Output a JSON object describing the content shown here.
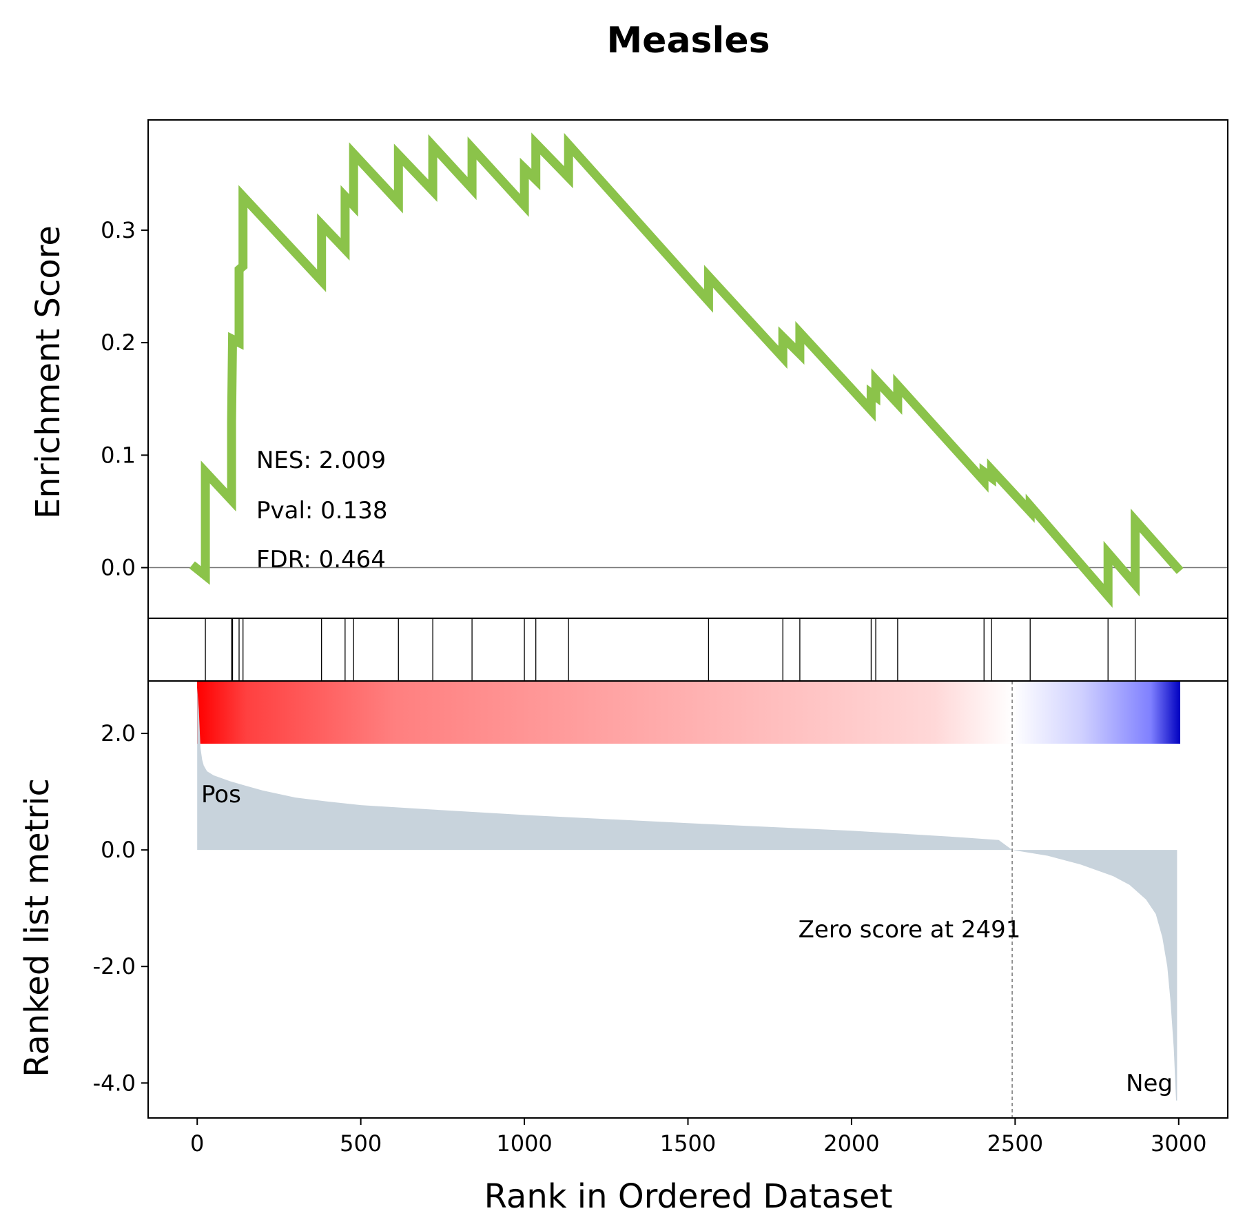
{
  "chart_data": {
    "type": "line",
    "title": "Measles",
    "xlabel": "Rank in Ordered Dataset",
    "xlim": [
      -150,
      3150
    ],
    "xticks": [
      0,
      500,
      1000,
      1500,
      2000,
      2500,
      3000
    ],
    "xtick_labels": [
      "0",
      "500",
      "1000",
      "1500",
      "2000",
      "2500",
      "3000"
    ],
    "n_genes": 3000,
    "enrichment": {
      "ylabel": "Enrichment Score",
      "ylim": [
        -0.045,
        0.398
      ],
      "yticks": [
        0.0,
        0.1,
        0.2,
        0.3
      ],
      "ytick_labels": [
        "0.0",
        "0.1",
        "0.2",
        "0.3"
      ],
      "color": "#8bc34a",
      "points": [
        [
          -5,
          0.0
        ],
        [
          25,
          -0.007
        ],
        [
          25,
          0.085
        ],
        [
          105,
          0.06
        ],
        [
          105,
          0.13
        ],
        [
          108,
          0.203
        ],
        [
          128,
          0.2
        ],
        [
          128,
          0.265
        ],
        [
          140,
          0.268
        ],
        [
          140,
          0.33
        ],
        [
          380,
          0.255
        ],
        [
          380,
          0.305
        ],
        [
          452,
          0.283
        ],
        [
          452,
          0.33
        ],
        [
          478,
          0.322
        ],
        [
          478,
          0.368
        ],
        [
          615,
          0.325
        ],
        [
          615,
          0.367
        ],
        [
          720,
          0.335
        ],
        [
          720,
          0.375
        ],
        [
          840,
          0.337
        ],
        [
          840,
          0.373
        ],
        [
          1000,
          0.322
        ],
        [
          1000,
          0.355
        ],
        [
          1035,
          0.345
        ],
        [
          1035,
          0.377
        ],
        [
          1135,
          0.347
        ],
        [
          1135,
          0.376
        ],
        [
          1563,
          0.237
        ],
        [
          1563,
          0.259
        ],
        [
          1790,
          0.187
        ],
        [
          1790,
          0.205
        ],
        [
          1842,
          0.19
        ],
        [
          1842,
          0.209
        ],
        [
          2060,
          0.14
        ],
        [
          2060,
          0.155
        ],
        [
          2074,
          0.152
        ],
        [
          2074,
          0.167
        ],
        [
          2141,
          0.146
        ],
        [
          2141,
          0.162
        ],
        [
          2405,
          0.077
        ],
        [
          2405,
          0.085
        ],
        [
          2428,
          0.08
        ],
        [
          2428,
          0.087
        ],
        [
          2546,
          0.05
        ],
        [
          2546,
          0.055
        ],
        [
          2784,
          -0.025
        ],
        [
          2784,
          0.013
        ],
        [
          2867,
          -0.015
        ],
        [
          2867,
          0.042
        ],
        [
          2995,
          0.0
        ]
      ],
      "hit_ranks": [
        25,
        105,
        108,
        128,
        140,
        380,
        452,
        478,
        615,
        720,
        840,
        1000,
        1035,
        1135,
        1563,
        1790,
        1842,
        2060,
        2074,
        2141,
        2405,
        2428,
        2546,
        2784,
        2867
      ],
      "stats": {
        "nes": "NES: 2.009",
        "pval": "Pval: 0.138",
        "fdr": "FDR: 0.464"
      }
    },
    "ranked_metric": {
      "ylabel": "Ranked list metric",
      "ylim": [
        -4.6,
        2.9
      ],
      "yticks": [
        2.0,
        0.0,
        -2.0,
        -4.0
      ],
      "ytick_labels": [
        "2.0",
        "0.0",
        "-2.0",
        "-4.0"
      ],
      "fill_color": "#c8d3dc",
      "zero_cross_rank": 2491,
      "profile": [
        [
          0,
          2.8
        ],
        [
          5,
          2.4
        ],
        [
          10,
          1.75
        ],
        [
          15,
          1.55
        ],
        [
          20,
          1.45
        ],
        [
          30,
          1.35
        ],
        [
          50,
          1.28
        ],
        [
          100,
          1.18
        ],
        [
          150,
          1.1
        ],
        [
          200,
          1.02
        ],
        [
          300,
          0.9
        ],
        [
          400,
          0.83
        ],
        [
          500,
          0.77
        ],
        [
          700,
          0.7
        ],
        [
          1000,
          0.6
        ],
        [
          1500,
          0.46
        ],
        [
          2000,
          0.33
        ],
        [
          2300,
          0.23
        ],
        [
          2450,
          0.17
        ],
        [
          2491,
          0.0
        ],
        [
          2600,
          -0.1
        ],
        [
          2700,
          -0.25
        ],
        [
          2800,
          -0.45
        ],
        [
          2850,
          -0.6
        ],
        [
          2900,
          -0.85
        ],
        [
          2930,
          -1.1
        ],
        [
          2950,
          -1.5
        ],
        [
          2965,
          -2.0
        ],
        [
          2975,
          -2.6
        ],
        [
          2985,
          -3.4
        ],
        [
          2992,
          -4.3
        ],
        [
          2995,
          -4.3
        ]
      ],
      "annotations": {
        "pos": "Pos",
        "neg": "Neg",
        "zero_score": "Zero score at 2491"
      },
      "pos_color": "#ff0000",
      "neg_color": "#0000ff"
    }
  }
}
